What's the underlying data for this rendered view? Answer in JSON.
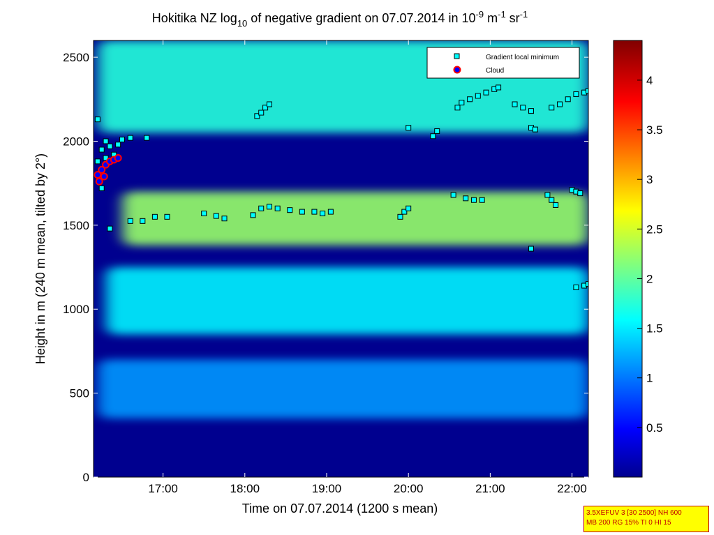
{
  "chart_data": {
    "type": "heatmap",
    "title_parts": {
      "prefix": "Hokitika NZ log",
      "sub": "10",
      "middle": " of negative gradient on 07.07.2014 in 10",
      "sup1": "-9",
      "unit_m": " m",
      "sup2": "-1",
      "unit_sr": " sr",
      "sup3": "-1"
    },
    "xlabel": "Time on 07.07.2014 (1200 s mean)",
    "ylabel": "Height in m (240 m mean, tilted by 2°)",
    "x_ticks": [
      "17:00",
      "18:00",
      "19:00",
      "20:00",
      "21:00",
      "22:00"
    ],
    "x_tick_hours": [
      17,
      18,
      19,
      20,
      21,
      22
    ],
    "xlim_hours": [
      16.15,
      22.2
    ],
    "y_ticks": [
      "0",
      "500",
      "1000",
      "1500",
      "2000",
      "2500"
    ],
    "y_tick_values": [
      0,
      500,
      1000,
      1500,
      2000,
      2500
    ],
    "ylim": [
      0,
      2600
    ],
    "colorbar": {
      "ticks": [
        "0.5",
        "1",
        "1.5",
        "2",
        "2.5",
        "3",
        "3.5",
        "4"
      ],
      "tick_values": [
        0.5,
        1,
        1.5,
        2,
        2.5,
        3,
        3.5,
        4
      ],
      "range": [
        0,
        4.4
      ],
      "colormap": "jet"
    },
    "legend": {
      "placement": "top-right",
      "entries": [
        {
          "label": "Gradient local minimum",
          "marker": "square",
          "color": "#00ffff"
        },
        {
          "label": "Cloud",
          "marker": "circle",
          "color": "#0000ff",
          "edge": "#ff0000"
        }
      ]
    },
    "layers": [
      {
        "name": "upper layer",
        "hours": [
          16.2,
          22.2
        ],
        "height": [
          2050,
          2600
        ],
        "level": 1.8
      },
      {
        "name": "main layer",
        "hours": [
          16.5,
          22.2
        ],
        "height": [
          1380,
          1700
        ],
        "level": 2.3
      },
      {
        "name": "lower layer",
        "hours": [
          16.3,
          22.2
        ],
        "height": [
          850,
          1250
        ],
        "level": 1.6
      },
      {
        "name": "near-surface layer",
        "hours": [
          16.2,
          22.2
        ],
        "height": [
          350,
          700
        ],
        "level": 1.2
      }
    ],
    "gradient_minima": [
      {
        "x": 16.6,
        "y": 1525
      },
      {
        "x": 16.75,
        "y": 1525
      },
      {
        "x": 16.9,
        "y": 1550
      },
      {
        "x": 17.05,
        "y": 1550
      },
      {
        "x": 17.5,
        "y": 1570
      },
      {
        "x": 17.65,
        "y": 1555
      },
      {
        "x": 17.75,
        "y": 1540
      },
      {
        "x": 18.1,
        "y": 1560
      },
      {
        "x": 18.2,
        "y": 1600
      },
      {
        "x": 18.3,
        "y": 1610
      },
      {
        "x": 18.4,
        "y": 1600
      },
      {
        "x": 18.55,
        "y": 1590
      },
      {
        "x": 18.7,
        "y": 1580
      },
      {
        "x": 18.85,
        "y": 1580
      },
      {
        "x": 18.95,
        "y": 1570
      },
      {
        "x": 19.05,
        "y": 1580
      },
      {
        "x": 19.9,
        "y": 1550
      },
      {
        "x": 19.95,
        "y": 1580
      },
      {
        "x": 20.0,
        "y": 1600
      },
      {
        "x": 18.15,
        "y": 2150
      },
      {
        "x": 18.2,
        "y": 2170
      },
      {
        "x": 18.25,
        "y": 2200
      },
      {
        "x": 18.3,
        "y": 2220
      },
      {
        "x": 20.0,
        "y": 2080
      },
      {
        "x": 20.3,
        "y": 2030
      },
      {
        "x": 20.35,
        "y": 2060
      },
      {
        "x": 20.6,
        "y": 2200
      },
      {
        "x": 20.65,
        "y": 2230
      },
      {
        "x": 20.75,
        "y": 2250
      },
      {
        "x": 20.85,
        "y": 2270
      },
      {
        "x": 20.95,
        "y": 2290
      },
      {
        "x": 21.05,
        "y": 2310
      },
      {
        "x": 21.1,
        "y": 2320
      },
      {
        "x": 21.3,
        "y": 2220
      },
      {
        "x": 21.4,
        "y": 2200
      },
      {
        "x": 21.5,
        "y": 2180
      },
      {
        "x": 21.5,
        "y": 2080
      },
      {
        "x": 21.55,
        "y": 2070
      },
      {
        "x": 21.75,
        "y": 2200
      },
      {
        "x": 21.85,
        "y": 2220
      },
      {
        "x": 21.95,
        "y": 2250
      },
      {
        "x": 22.05,
        "y": 2280
      },
      {
        "x": 22.15,
        "y": 2290
      },
      {
        "x": 22.2,
        "y": 2300
      },
      {
        "x": 20.55,
        "y": 1680
      },
      {
        "x": 20.7,
        "y": 1660
      },
      {
        "x": 20.8,
        "y": 1650
      },
      {
        "x": 20.9,
        "y": 1650
      },
      {
        "x": 21.5,
        "y": 1360
      },
      {
        "x": 21.7,
        "y": 1680
      },
      {
        "x": 21.75,
        "y": 1650
      },
      {
        "x": 21.8,
        "y": 1620
      },
      {
        "x": 22.0,
        "y": 1710
      },
      {
        "x": 22.05,
        "y": 1700
      },
      {
        "x": 22.1,
        "y": 1690
      },
      {
        "x": 22.05,
        "y": 1130
      },
      {
        "x": 22.15,
        "y": 1140
      },
      {
        "x": 22.2,
        "y": 1150
      },
      {
        "x": 16.2,
        "y": 1880
      },
      {
        "x": 16.25,
        "y": 1950
      },
      {
        "x": 16.3,
        "y": 2000
      },
      {
        "x": 16.35,
        "y": 1970
      },
      {
        "x": 16.4,
        "y": 1920
      },
      {
        "x": 16.45,
        "y": 1980
      },
      {
        "x": 16.5,
        "y": 2010
      },
      {
        "x": 16.6,
        "y": 2020
      },
      {
        "x": 16.8,
        "y": 2020
      },
      {
        "x": 16.2,
        "y": 2130
      },
      {
        "x": 16.3,
        "y": 1900
      },
      {
        "x": 16.25,
        "y": 1720
      },
      {
        "x": 16.35,
        "y": 1480
      }
    ],
    "clouds": [
      {
        "x": 16.2,
        "y": 1800
      },
      {
        "x": 16.25,
        "y": 1830
      },
      {
        "x": 16.3,
        "y": 1860
      },
      {
        "x": 16.35,
        "y": 1880
      },
      {
        "x": 16.4,
        "y": 1890
      },
      {
        "x": 16.22,
        "y": 1760
      },
      {
        "x": 16.28,
        "y": 1790
      },
      {
        "x": 16.45,
        "y": 1900
      }
    ]
  },
  "info_box": {
    "line1": "3.5XEFUV 3 [30 2500] NH 600",
    "line2": "MB 200 RG 15% TI 0 HI 15"
  }
}
